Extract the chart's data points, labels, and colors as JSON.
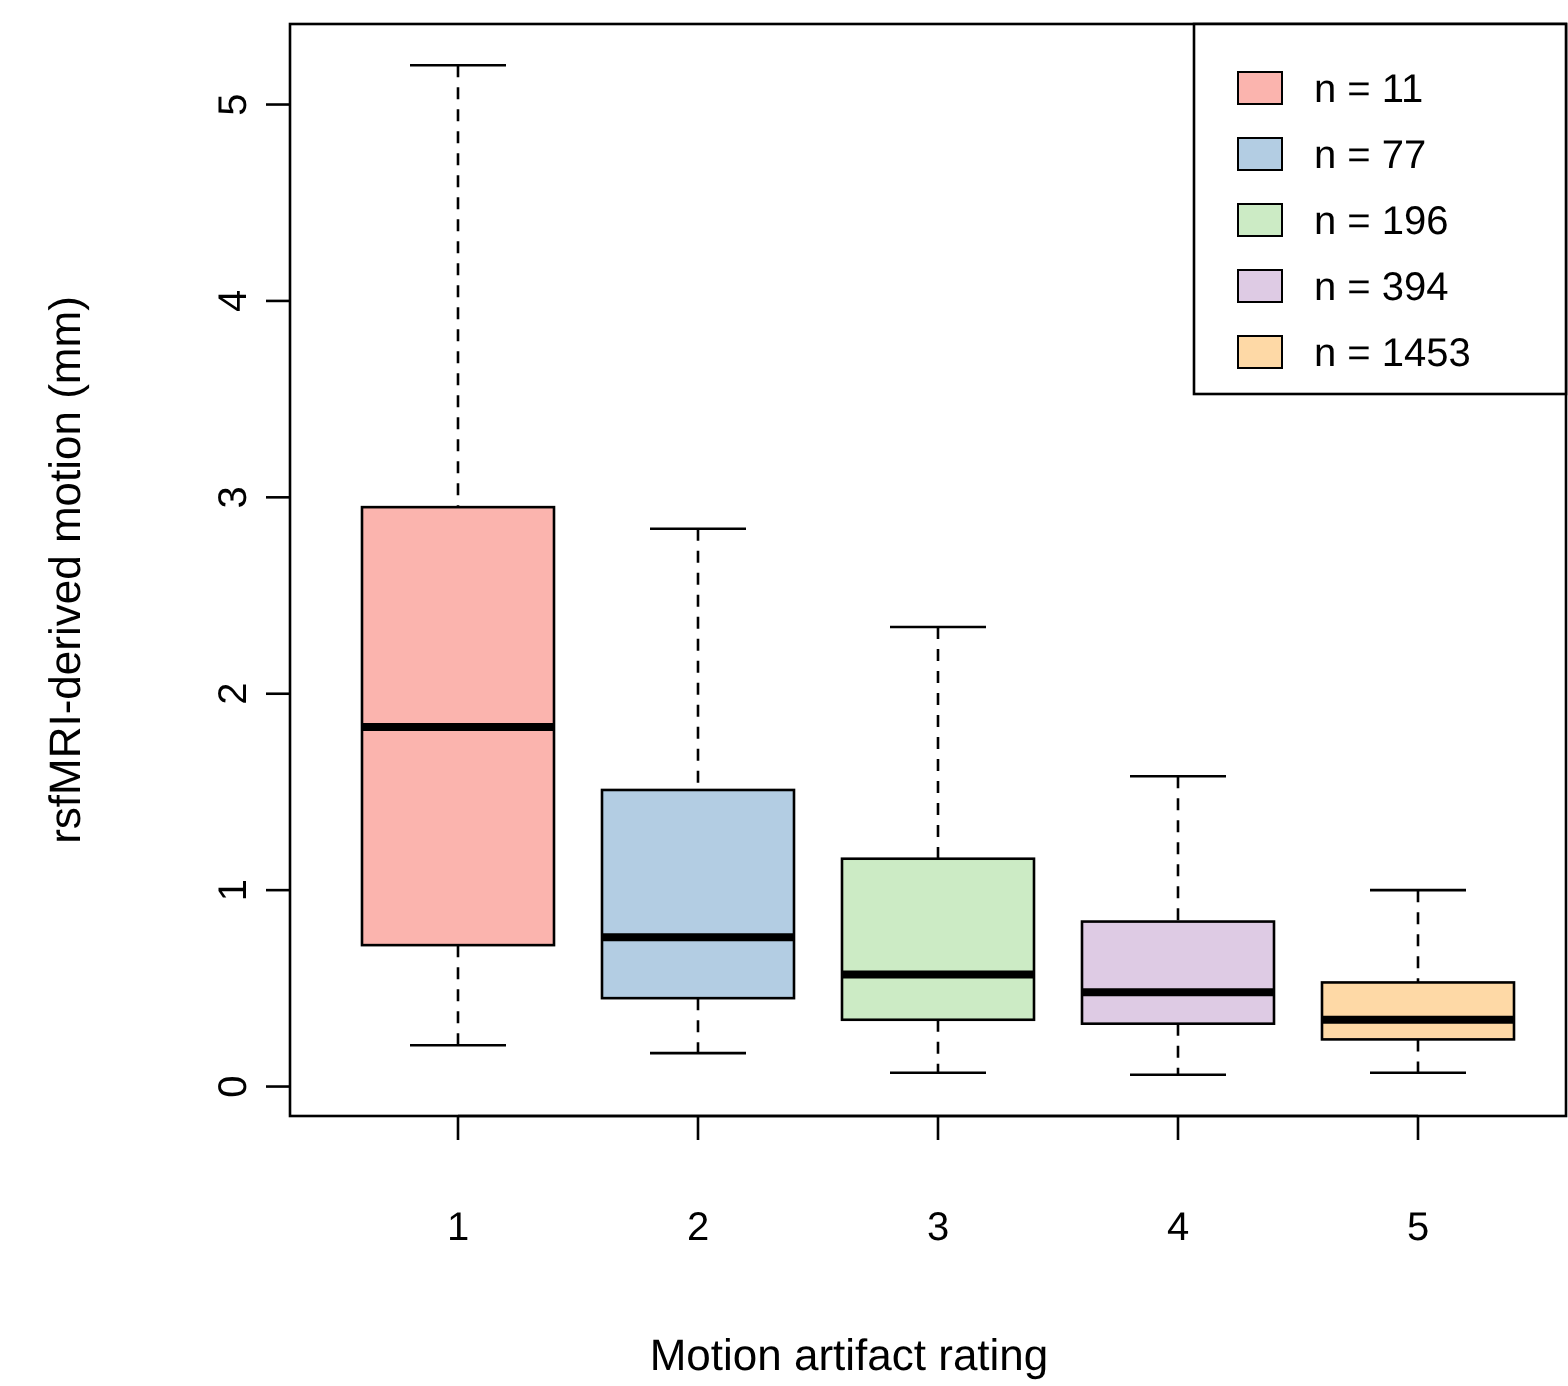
{
  "chart_data": {
    "type": "box",
    "xlabel": "Motion artifact rating",
    "ylabel": "rsfMRI-derived motion (mm)",
    "categories": [
      "1",
      "2",
      "3",
      "4",
      "5"
    ],
    "ylim": [
      -0.15,
      5.41
    ],
    "yticks": [
      0,
      1,
      2,
      3,
      4,
      5
    ],
    "grid": false,
    "legend": "top right",
    "series": [
      {
        "name": "n = 11",
        "color": "#fbb4ae",
        "boxes": [
          {
            "low": 0.21,
            "q1": 0.72,
            "median": 1.83,
            "q3": 2.95,
            "high": 5.2
          },
          null,
          null,
          null,
          null
        ]
      },
      {
        "name": "n = 77",
        "color": "#b3cde3",
        "boxes": [
          null,
          {
            "low": 0.17,
            "q1": 0.45,
            "median": 0.76,
            "q3": 1.51,
            "high": 2.84
          },
          null,
          null,
          null
        ]
      },
      {
        "name": "n = 196",
        "color": "#ccebc5",
        "boxes": [
          null,
          null,
          {
            "low": 0.07,
            "q1": 0.34,
            "median": 0.57,
            "q3": 1.16,
            "high": 2.34
          },
          null,
          null
        ]
      },
      {
        "name": "n = 394",
        "color": "#decbe4",
        "boxes": [
          null,
          null,
          null,
          {
            "low": 0.06,
            "q1": 0.32,
            "median": 0.48,
            "q3": 0.84,
            "high": 1.58
          },
          null
        ]
      },
      {
        "name": "n = 1453",
        "color": "#fed9a6",
        "boxes": [
          null,
          null,
          null,
          null,
          {
            "low": 0.07,
            "q1": 0.24,
            "median": 0.34,
            "q3": 0.53,
            "high": 1.0
          }
        ]
      }
    ]
  }
}
